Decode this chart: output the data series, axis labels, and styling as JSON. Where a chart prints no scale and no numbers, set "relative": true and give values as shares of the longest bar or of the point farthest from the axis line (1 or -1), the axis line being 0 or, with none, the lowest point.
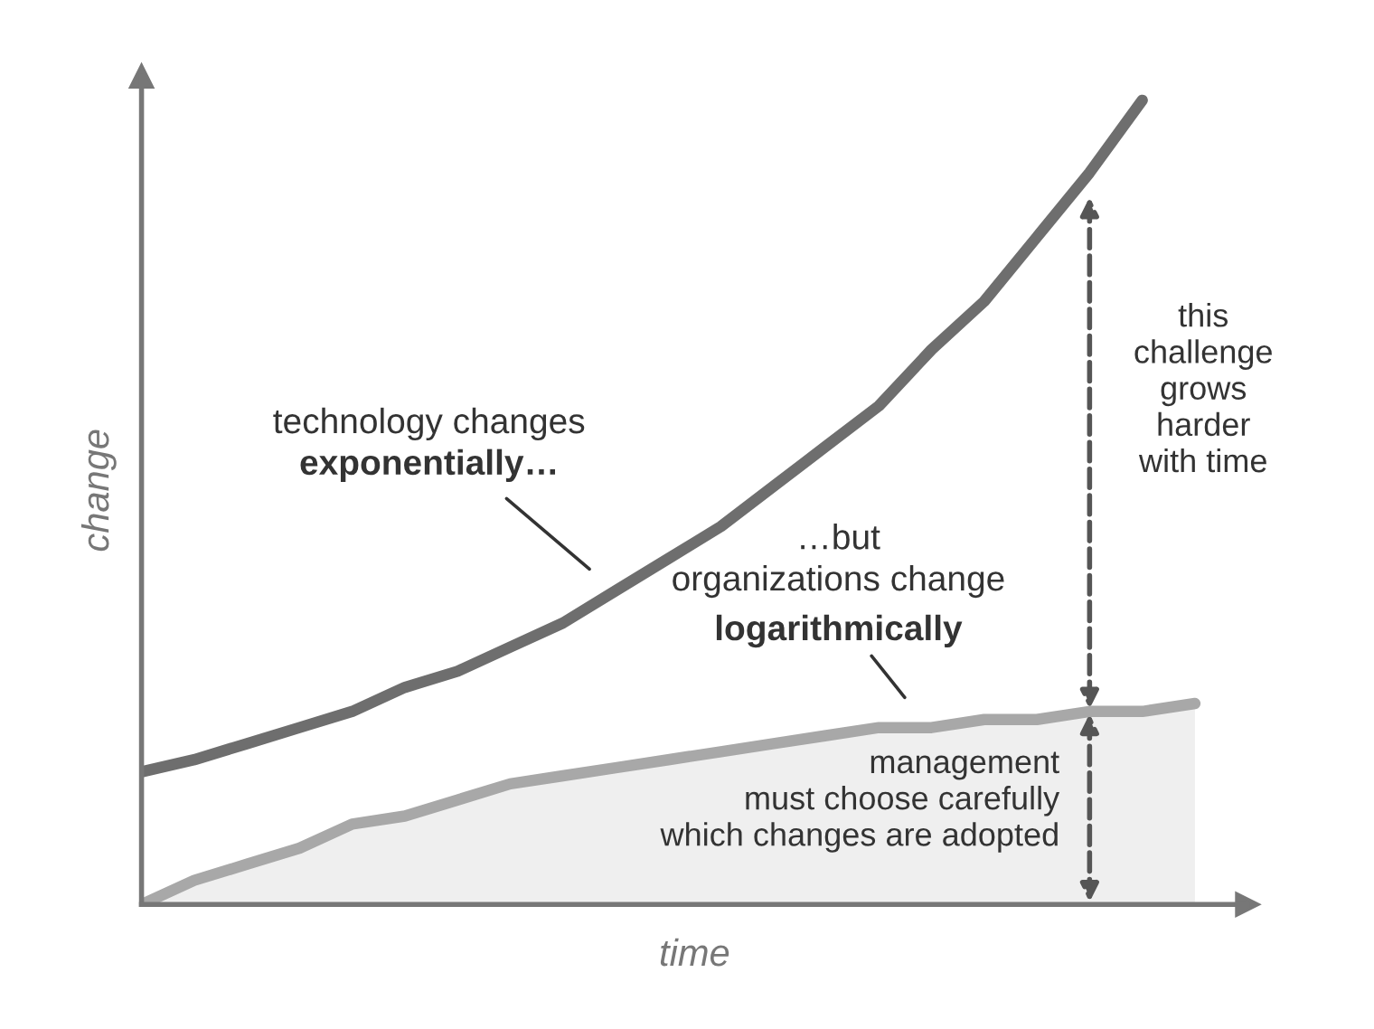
{
  "chart_data": {
    "type": "line",
    "relative": true,
    "xlabel": "time",
    "ylabel": "change",
    "categories": [
      null,
      null,
      null,
      null,
      null,
      null,
      null,
      null,
      null,
      null,
      null,
      null,
      null,
      null,
      null,
      null,
      null,
      null,
      null,
      null,
      null
    ],
    "series": [
      {
        "color": "#6e6e6e",
        "values": [
          0.165,
          0.18,
          0.2,
          0.22,
          0.24,
          0.27,
          0.29,
          0.32,
          0.35,
          0.39,
          0.43,
          0.47,
          0.52,
          0.57,
          0.62,
          0.69,
          0.75,
          0.83,
          0.91,
          1.0,
          null
        ]
      },
      {
        "type": "area",
        "color": "#a8a8a8",
        "values": [
          0,
          0.03,
          0.05,
          0.07,
          0.1,
          0.11,
          0.13,
          0.15,
          0.16,
          0.17,
          0.18,
          0.19,
          0.2,
          0.21,
          0.22,
          0.22,
          0.23,
          0.23,
          0.24,
          0.24,
          0.25
        ]
      }
    ],
    "annotations": [
      "technology changes",
      "exponentially…",
      "…but",
      "organizations change",
      "logarithmically",
      "this\nchallenge\ngrows\nharder\nwith time",
      "management\nmust choose carefully\nwhich changes are adopted"
    ],
    "grid": false,
    "legend": false
  }
}
